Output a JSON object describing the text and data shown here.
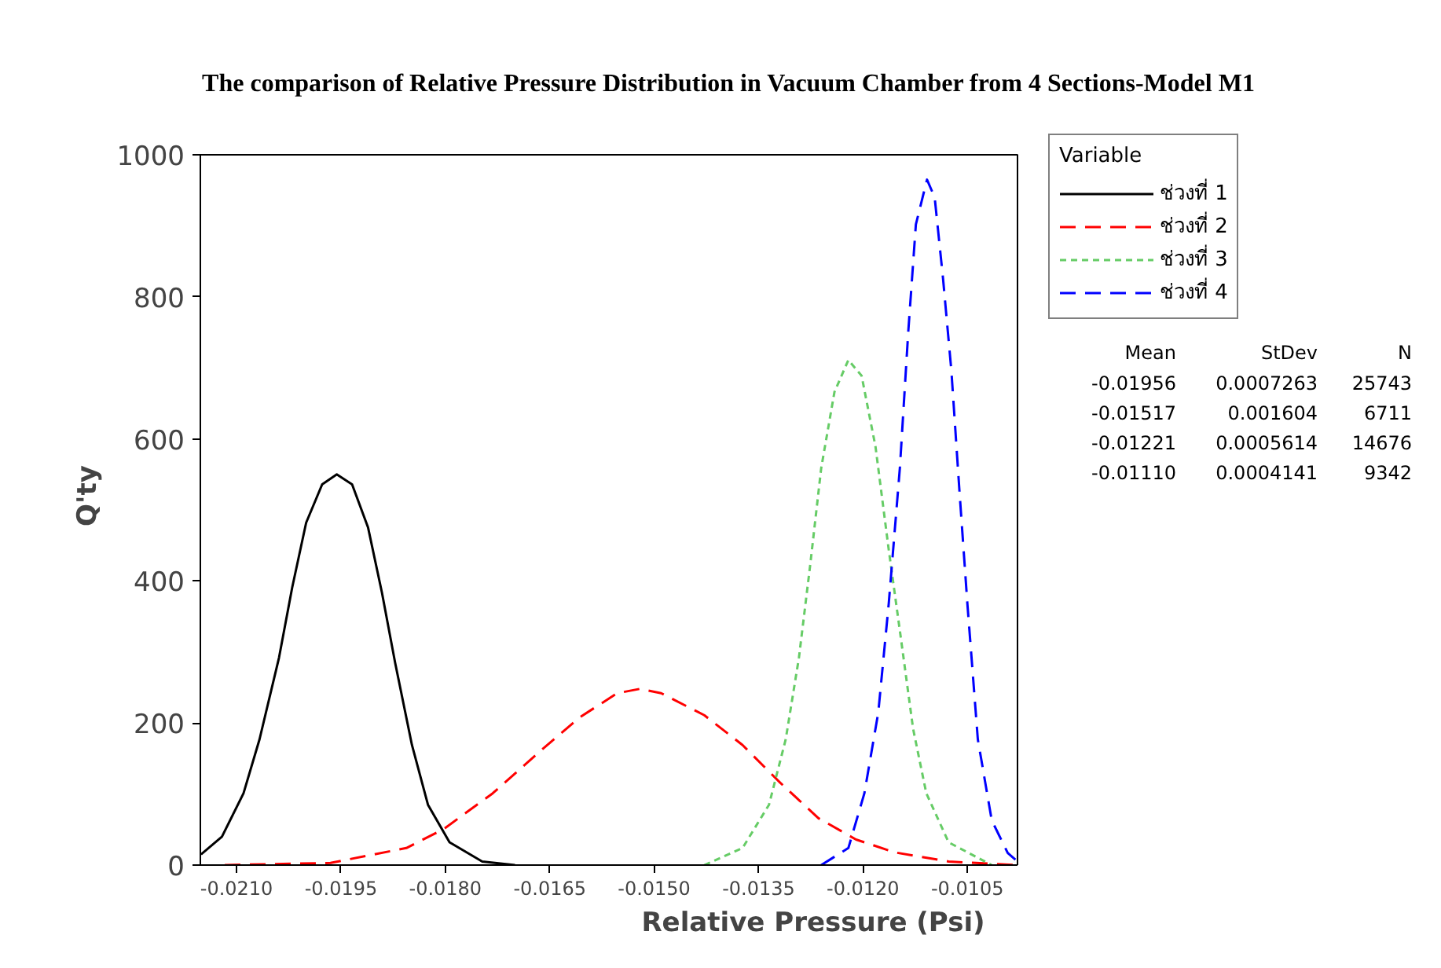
{
  "chart_data": {
    "type": "line",
    "title": "The comparison of Relative Pressure Distribution in Vacuum Chamber from 4 Sections-Model M1",
    "xlabel": "Relative Pressure (Psi)",
    "ylabel": "Q'ty",
    "legend_title": "Variable",
    "legend": "top right",
    "grid": false,
    "xlim": [
      -0.02152,
      -0.00978
    ],
    "ylim": [
      0,
      1000
    ],
    "xticks": [
      {
        "value": -0.021,
        "label": "-0.0210"
      },
      {
        "value": -0.0195,
        "label": "-0.0195"
      },
      {
        "value": -0.018,
        "label": "-0.0180"
      },
      {
        "value": -0.0165,
        "label": "-0.0165"
      },
      {
        "value": -0.015,
        "label": "-0.0150"
      },
      {
        "value": -0.0135,
        "label": "-0.0135"
      },
      {
        "value": -0.012,
        "label": "-0.0120"
      },
      {
        "value": -0.0105,
        "label": "-0.0105"
      }
    ],
    "yticks": [
      0,
      200,
      400,
      600,
      800,
      1000
    ],
    "series": [
      {
        "name": "ช่วงที่ 1",
        "color": "#000000",
        "line_style": "solid",
        "x": [
          -0.02151,
          -0.02121,
          -0.0209,
          -0.02067,
          -0.02039,
          -0.0202,
          -0.02,
          -0.01977,
          -0.01956,
          -0.01934,
          -0.01911,
          -0.01891,
          -0.01872,
          -0.01848,
          -0.01825,
          -0.01794,
          -0.01747,
          -0.017
        ],
        "values": [
          15,
          40,
          101,
          177,
          292,
          391,
          482,
          536,
          550,
          536,
          475,
          383,
          284,
          169,
          85,
          32,
          5,
          0
        ]
      },
      {
        "name": "ช่วงที่ 2",
        "color": "#ff0000",
        "line_style": "dashed",
        "x": [
          -0.02117,
          -0.01965,
          -0.01856,
          -0.01802,
          -0.01732,
          -0.01662,
          -0.01607,
          -0.01553,
          -0.01521,
          -0.0149,
          -0.01428,
          -0.01373,
          -0.01319,
          -0.01264,
          -0.0121,
          -0.01155,
          -0.01077,
          -0.00978
        ],
        "values": [
          0,
          3,
          24,
          51,
          101,
          162,
          208,
          242,
          248,
          242,
          211,
          169,
          116,
          66,
          36,
          18,
          5,
          0
        ]
      },
      {
        "name": "ช่วงที่ 3",
        "color": "#66cc66",
        "line_style": "dotted",
        "x": [
          -0.01428,
          -0.01373,
          -0.01335,
          -0.01311,
          -0.01292,
          -0.01276,
          -0.0126,
          -0.01241,
          -0.01221,
          -0.01202,
          -0.01182,
          -0.01163,
          -0.01147,
          -0.01128,
          -0.01109,
          -0.01077,
          -0.01015
        ],
        "values": [
          0,
          24,
          85,
          177,
          292,
          421,
          559,
          666,
          711,
          689,
          589,
          444,
          330,
          192,
          101,
          32,
          0
        ]
      },
      {
        "name": "ช่วงที่ 4",
        "color": "#0000ff",
        "line_style": "dashed",
        "x": [
          -0.0126,
          -0.01221,
          -0.01198,
          -0.01178,
          -0.01163,
          -0.01147,
          -0.01135,
          -0.01124,
          -0.01108,
          -0.01097,
          -0.01085,
          -0.01073,
          -0.01061,
          -0.0105,
          -0.01035,
          -0.01015,
          -0.00992,
          -0.00978
        ],
        "values": [
          0,
          24,
          101,
          215,
          368,
          559,
          750,
          902,
          965,
          940,
          826,
          696,
          521,
          368,
          177,
          63,
          17,
          5
        ]
      }
    ],
    "annotations": [
      "Mean",
      "StDev",
      "N",
      "-0.01956",
      "0.0007263",
      "25743",
      "-0.01517",
      "0.001604",
      "6711",
      "-0.01221",
      "0.0005614",
      "14676",
      "-0.01110",
      "0.0004141",
      "9342"
    ]
  }
}
